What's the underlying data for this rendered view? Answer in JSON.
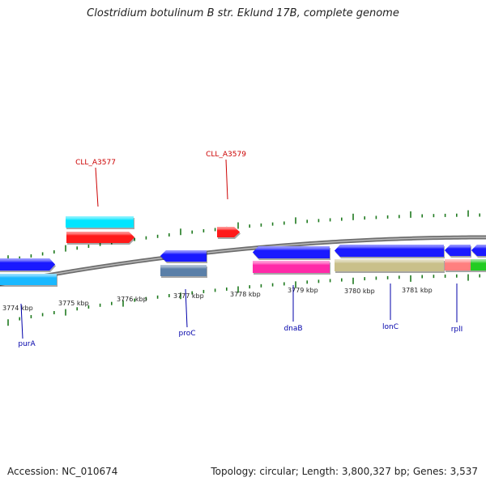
{
  "title": "Clostridium botulinum B str. Eklund 17B, complete genome",
  "footer": {
    "accession": "Accession: NC_010674",
    "summary": "Topology: circular; Length: 3,800,327 bp; Genes: 3,537"
  },
  "colors": {
    "backbone": "#8a8a8a",
    "tick": "#1f7a1f",
    "upper_label": "#cc0000",
    "lower_label": "#0000aa",
    "scale_text": "#222222"
  },
  "scale_labels": [
    "3774 kbp",
    "3775 kbp",
    "3776 kbp",
    "3777 kbp",
    "3778 kbp",
    "3779 kbp",
    "3780 kbp",
    "3781 kbp"
  ],
  "features": [
    {
      "id": "f1",
      "color": "#00e5ff",
      "strand": "+",
      "track": 2
    },
    {
      "id": "f2",
      "color": "#ff1a1a",
      "strand": "+",
      "track": 1
    },
    {
      "id": "f3",
      "color": "#ff1a1a",
      "strand": "+",
      "track": 1
    },
    {
      "id": "f4",
      "color": "#1a1aff",
      "strand": "+",
      "track": -1
    },
    {
      "id": "f5",
      "color": "#19b8ff",
      "strand": "+",
      "track": -2
    },
    {
      "id": "f6",
      "color": "#1a1aff",
      "strand": "-",
      "track": -1
    },
    {
      "id": "f7",
      "color": "#5a7fa8",
      "strand": "-",
      "track": -2
    },
    {
      "id": "f8",
      "color": "#1a1aff",
      "strand": "-",
      "track": -1
    },
    {
      "id": "f9",
      "color": "#ff2aa8",
      "strand": "-",
      "track": -2
    },
    {
      "id": "f10",
      "color": "#1a1aff",
      "strand": "-",
      "track": -1
    },
    {
      "id": "f11",
      "color": "#c9c08a",
      "strand": "-",
      "track": -2
    },
    {
      "id": "f12",
      "color": "#1a1aff",
      "strand": "-",
      "track": -1
    },
    {
      "id": "f13",
      "color": "#ff7f7f",
      "strand": "-",
      "track": -2
    },
    {
      "id": "f14",
      "color": "#1a1aff",
      "strand": "-",
      "track": -1
    },
    {
      "id": "f15",
      "color": "#22cc22",
      "strand": "-",
      "track": -2
    }
  ],
  "gene_labels": [
    {
      "text": "CLL_A3577",
      "group": "upper"
    },
    {
      "text": "CLL_A3579",
      "group": "upper"
    },
    {
      "text": "purA",
      "group": "lower"
    },
    {
      "text": "proC",
      "group": "lower"
    },
    {
      "text": "dnaB",
      "group": "lower"
    },
    {
      "text": "lonC",
      "group": "lower"
    },
    {
      "text": "rplI",
      "group": "lower"
    }
  ]
}
